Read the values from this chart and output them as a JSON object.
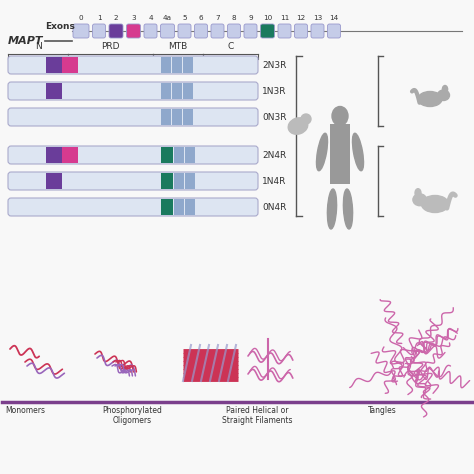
{
  "bg_color": "#f8f8f8",
  "exon_labels": [
    "0",
    "1",
    "2",
    "3",
    "4",
    "4a",
    "5",
    "6",
    "7",
    "8",
    "9",
    "10",
    "11",
    "12",
    "13",
    "14"
  ],
  "exon_colors": [
    "#c5cce8",
    "#c5cce8",
    "#6a3d9a",
    "#d63a8f",
    "#c5cce8",
    "#c5cce8",
    "#c5cce8",
    "#c5cce8",
    "#c5cce8",
    "#c5cce8",
    "#c5cce8",
    "#1a7a5e",
    "#c5cce8",
    "#c5cce8",
    "#c5cce8",
    "#c5cce8"
  ],
  "isoform_names": [
    "2N3R",
    "1N3R",
    "0N3R",
    "2N4R",
    "1N4R",
    "0N4R"
  ],
  "color_purple": "#6a3d9a",
  "color_magenta": "#d63a8f",
  "color_teal": "#1a7a5e",
  "color_blue_seg": "#8fa8cc",
  "color_bar_bg": "#dde5f2",
  "color_exon_default": "#c5cce8",
  "line_color": "#555555",
  "text_color": "#333333",
  "human_color": "#999999",
  "animal_color": "#aaaaaa",
  "filament_red": "#cc3355",
  "filament_purple": "#9966bb",
  "filament_pink": "#cc66aa"
}
